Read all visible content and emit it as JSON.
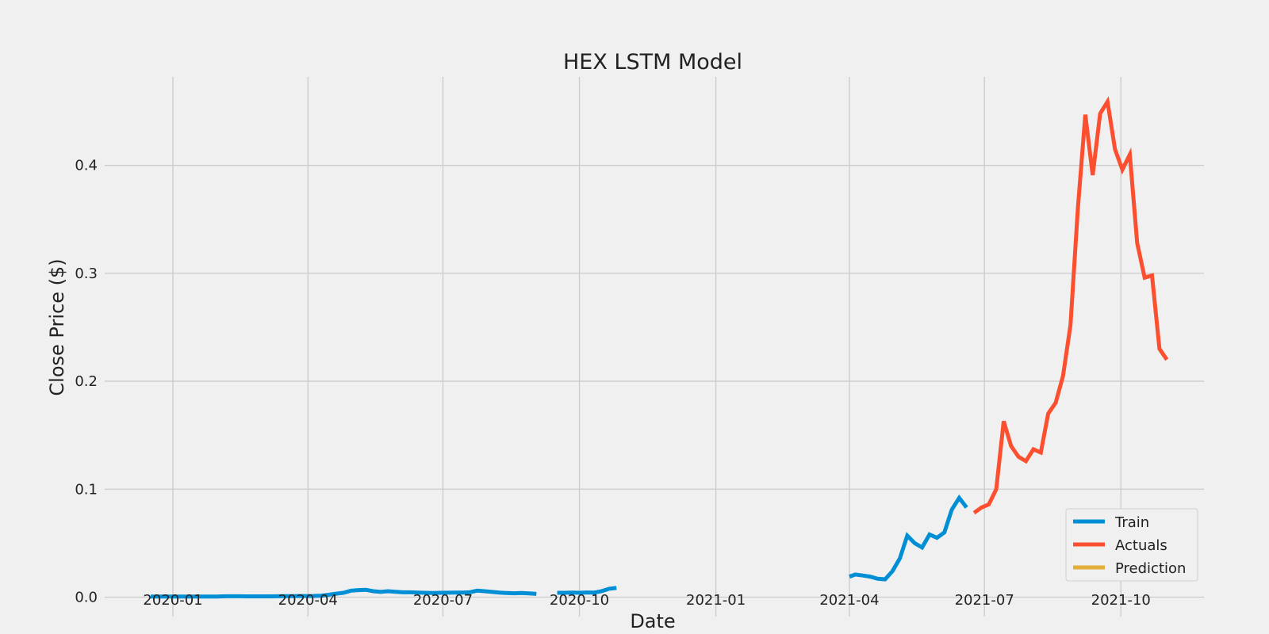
{
  "chart_data": {
    "type": "line",
    "title": "HEX LSTM Model",
    "xlabel": "Date",
    "ylabel": "Close Price ($)",
    "x_ticks": [
      "2020-01",
      "2020-04",
      "2020-07",
      "2020-10",
      "2021-01",
      "2021-04",
      "2021-07",
      "2021-10"
    ],
    "y_ticks": [
      "0.0",
      "0.1",
      "0.2",
      "0.3",
      "0.4"
    ],
    "xlim": [
      "2019-11-16",
      "2021-11-26"
    ],
    "ylim": [
      -0.018,
      0.482
    ],
    "grid": true,
    "legend_position": "lower-right",
    "colors": {
      "train": "#008fd5",
      "actuals": "#fc4f30",
      "prediction": "#e5ae38",
      "background": "#f0f0f0",
      "grid": "#cbcbcb"
    },
    "series": [
      {
        "name": "Train",
        "color": "#008fd5",
        "segments": [
          {
            "x": [
              "2019-12-17",
              "2019-12-22",
              "2019-12-27",
              "2020-01-01",
              "2020-01-06",
              "2020-01-11",
              "2020-01-16",
              "2020-01-21",
              "2020-01-26",
              "2020-01-31",
              "2020-02-05",
              "2020-02-10",
              "2020-02-15",
              "2020-02-20",
              "2020-02-25",
              "2020-03-01",
              "2020-03-06",
              "2020-03-11",
              "2020-03-16",
              "2020-03-21",
              "2020-03-26",
              "2020-03-31",
              "2020-04-05",
              "2020-04-10",
              "2020-04-15",
              "2020-04-20",
              "2020-04-25",
              "2020-04-30",
              "2020-05-05",
              "2020-05-10",
              "2020-05-15",
              "2020-05-20",
              "2020-05-25",
              "2020-05-30",
              "2020-06-04",
              "2020-06-09",
              "2020-06-14",
              "2020-06-19",
              "2020-06-24",
              "2020-06-29",
              "2020-07-04",
              "2020-07-09",
              "2020-07-14",
              "2020-07-19",
              "2020-07-24",
              "2020-07-29",
              "2020-08-03",
              "2020-08-08",
              "2020-08-13",
              "2020-08-18",
              "2020-08-23",
              "2020-08-28",
              "2020-09-02"
            ],
            "y": [
              0.0006,
              0.0006,
              0.0005,
              0.0005,
              0.0005,
              0.0005,
              0.0005,
              0.0005,
              0.0005,
              0.0005,
              0.0008,
              0.0008,
              0.0008,
              0.0007,
              0.0007,
              0.0007,
              0.0007,
              0.0008,
              0.0009,
              0.0009,
              0.001,
              0.001,
              0.0011,
              0.0014,
              0.0022,
              0.0032,
              0.004,
              0.006,
              0.0065,
              0.0068,
              0.0055,
              0.0048,
              0.0055,
              0.005,
              0.0045,
              0.0045,
              0.0042,
              0.004,
              0.0038,
              0.004,
              0.0041,
              0.0042,
              0.0042,
              0.0045,
              0.006,
              0.0055,
              0.0048,
              0.0042,
              0.0038,
              0.0036,
              0.0038,
              0.0035,
              0.003
            ]
          },
          {
            "x": [
              "2020-09-16",
              "2020-09-21",
              "2020-09-26",
              "2020-10-01",
              "2020-10-06",
              "2020-10-11",
              "2020-10-16",
              "2020-10-21",
              "2020-10-26"
            ],
            "y": [
              0.004,
              0.004,
              0.0042,
              0.004,
              0.0043,
              0.0042,
              0.0055,
              0.0078,
              0.0085
            ]
          },
          {
            "x": [
              "2021-04-01",
              "2021-04-05",
              "2021-04-10",
              "2021-04-15",
              "2021-04-20",
              "2021-04-25",
              "2021-04-30",
              "2021-05-05",
              "2021-05-10",
              "2021-05-15",
              "2021-05-20",
              "2021-05-25",
              "2021-05-30",
              "2021-06-04",
              "2021-06-09",
              "2021-06-14",
              "2021-06-19"
            ],
            "y": [
              0.019,
              0.021,
              0.02,
              0.019,
              0.017,
              0.0165,
              0.024,
              0.036,
              0.057,
              0.05,
              0.046,
              0.058,
              0.055,
              0.06,
              0.081,
              0.092,
              0.083
            ]
          }
        ]
      },
      {
        "name": "Actuals",
        "color": "#fc4f30",
        "segments": [
          {
            "x": [
              "2021-06-24",
              "2021-06-29",
              "2021-07-04",
              "2021-07-09",
              "2021-07-14",
              "2021-07-19",
              "2021-07-24",
              "2021-07-29",
              "2021-08-03",
              "2021-08-08",
              "2021-08-13",
              "2021-08-18",
              "2021-08-23",
              "2021-08-28",
              "2021-09-02",
              "2021-09-07",
              "2021-09-12",
              "2021-09-17",
              "2021-09-22",
              "2021-09-27",
              "2021-10-02",
              "2021-10-07",
              "2021-10-12",
              "2021-10-17",
              "2021-10-22",
              "2021-10-27",
              "2021-11-01"
            ],
            "y": [
              0.078,
              0.083,
              0.086,
              0.1,
              0.163,
              0.14,
              0.13,
              0.126,
              0.137,
              0.134,
              0.17,
              0.18,
              0.205,
              0.252,
              0.36,
              0.447,
              0.391,
              0.448,
              0.459,
              0.415,
              0.396,
              0.41,
              0.328,
              0.296,
              0.298,
              0.23,
              0.22
            ]
          }
        ]
      },
      {
        "name": "Prediction",
        "color": "#e5ae38",
        "segments": []
      }
    ]
  }
}
